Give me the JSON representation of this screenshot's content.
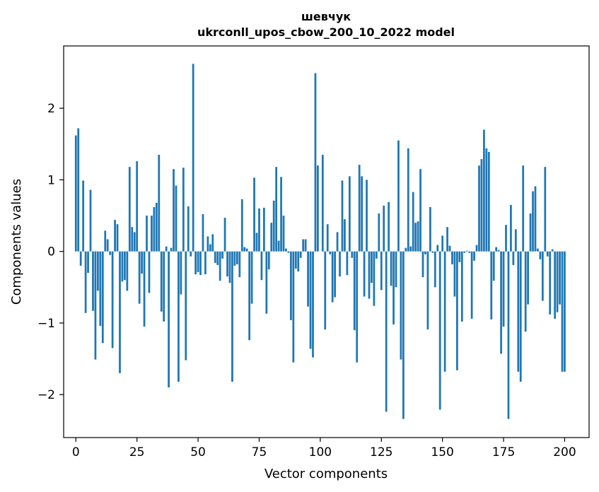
{
  "chart_data": {
    "type": "bar",
    "title_line1": "шевчук",
    "title_line2": "ukrconll_upos_cbow_200_10_2022 model",
    "xlabel": "Vector components",
    "ylabel": "Components values",
    "xlim": [
      -5,
      210
    ],
    "ylim": [
      -2.6,
      2.87
    ],
    "xticks": [
      0,
      25,
      50,
      75,
      100,
      125,
      150,
      175,
      200
    ],
    "yticks": [
      -2,
      -1,
      0,
      1,
      2
    ],
    "ytick_labels": [
      "−2",
      "−1",
      "0",
      "1",
      "2"
    ],
    "grid": false,
    "bar_color": "#1f77b4",
    "values": [
      1.62,
      1.72,
      -0.2,
      0.99,
      -0.86,
      -0.3,
      0.86,
      -0.83,
      -1.51,
      -0.55,
      -1.04,
      -1.28,
      0.29,
      0.17,
      -0.05,
      -1.35,
      0.44,
      0.38,
      -1.7,
      -0.42,
      -0.4,
      -0.55,
      1.18,
      0.34,
      0.27,
      1.26,
      -0.73,
      -0.31,
      -1.05,
      0.5,
      -0.58,
      0.5,
      0.62,
      0.68,
      1.35,
      -0.84,
      -0.98,
      0.07,
      -1.9,
      0.05,
      1.15,
      0.92,
      -1.82,
      -0.6,
      1.17,
      -1.52,
      0.63,
      -0.07,
      2.62,
      -0.32,
      -0.29,
      -0.33,
      0.52,
      -0.32,
      0.21,
      0.1,
      0.24,
      -0.16,
      -0.19,
      -0.41,
      -0.1,
      0.47,
      -0.35,
      -0.44,
      -1.82,
      -0.2,
      -0.18,
      -0.36,
      0.73,
      0.06,
      0.04,
      -1.24,
      -0.73,
      1.03,
      0.26,
      0.6,
      -0.4,
      0.61,
      -0.87,
      -0.25,
      0.4,
      0.71,
      1.18,
      0.15,
      1.04,
      0.5,
      0.04,
      -0.02,
      -0.96,
      -1.55,
      -0.24,
      -0.28,
      -0.09,
      0.17,
      0.17,
      -0.77,
      -1.36,
      -1.48,
      2.49,
      1.2,
      0.0,
      1.35,
      -1.09,
      0.38,
      -0.04,
      -0.71,
      -0.64,
      0.27,
      -0.35,
      0.99,
      0.45,
      -0.33,
      1.05,
      -0.09,
      -1.1,
      -1.55,
      1.21,
      1.05,
      -0.63,
      1.0,
      -0.66,
      -0.44,
      -0.76,
      -0.1,
      0.53,
      -0.54,
      0.64,
      -2.24,
      0.69,
      -0.48,
      -1.02,
      -0.5,
      1.55,
      -1.51,
      -2.34,
      0.05,
      1.44,
      0.07,
      0.83,
      0.4,
      0.42,
      1.15,
      -0.36,
      -0.04,
      -1.09,
      0.62,
      -0.02,
      -0.5,
      0.09,
      -2.21,
      0.22,
      -1.68,
      0.34,
      0.08,
      -0.18,
      -0.63,
      -1.66,
      -0.15,
      -0.98,
      -0.02,
      0.01,
      -0.02,
      -0.94,
      -0.13,
      0.09,
      1.2,
      1.29,
      1.7,
      1.44,
      1.39,
      -0.95,
      -0.41,
      0.06,
      0.02,
      -1.43,
      -1.05,
      0.37,
      -2.34,
      0.65,
      -0.19,
      0.31,
      -1.68,
      -1.82,
      1.2,
      -1.12,
      -0.74,
      0.53,
      0.84,
      0.91,
      0.04,
      -0.11,
      -0.69,
      1.18,
      -0.07,
      -0.88,
      0.03,
      -0.94,
      -0.85,
      -0.74,
      -1.68,
      -1.68
    ]
  }
}
